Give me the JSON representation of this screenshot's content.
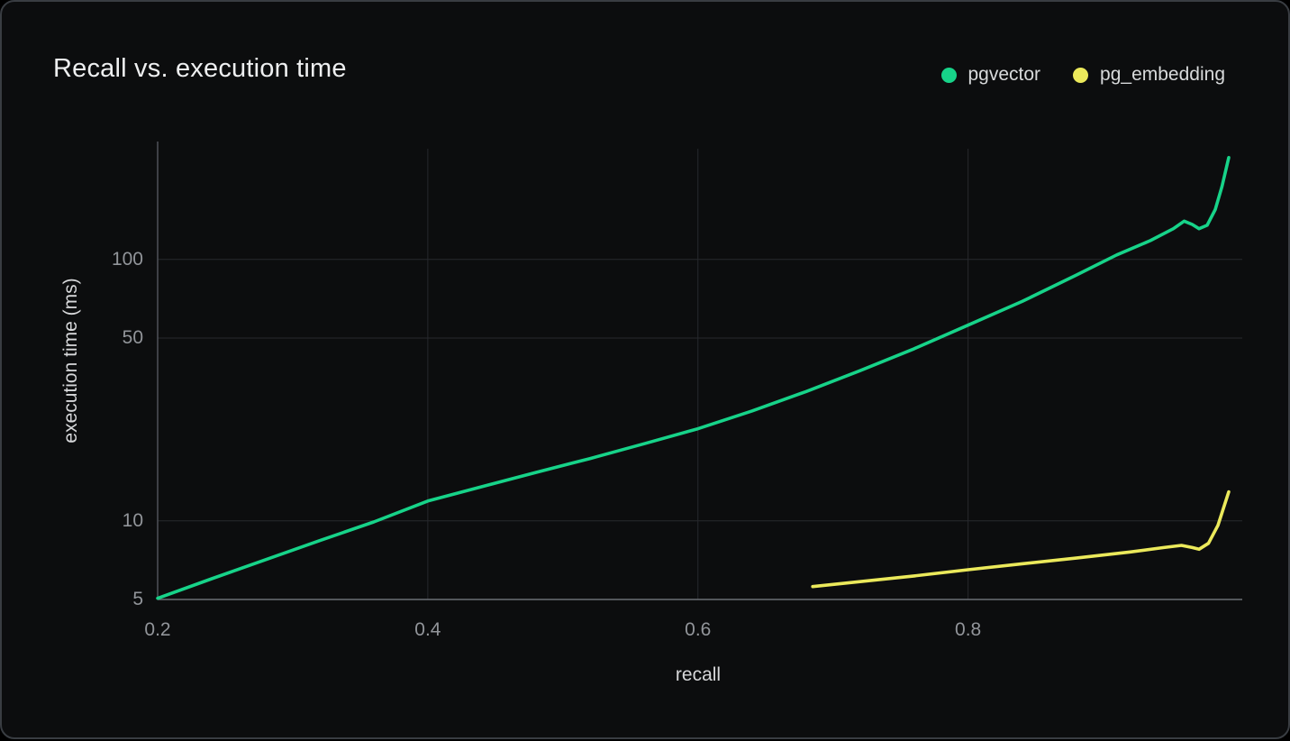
{
  "chart_data": {
    "type": "line",
    "title": "Recall vs. execution time",
    "xlabel": "recall",
    "ylabel": "execution time (ms)",
    "grid": true,
    "legend_position": "top-right",
    "x_axis": {
      "scale": "linear",
      "range": [
        0.2,
        1.003
      ],
      "tick_labels": [
        "0.2",
        "0.4",
        "0.6",
        "0.8"
      ],
      "tick_values": [
        0.2,
        0.4,
        0.6,
        0.8
      ]
    },
    "y_axis": {
      "scale": "log",
      "range": [
        5,
        280
      ],
      "tick_labels": [
        "5",
        "10",
        "50",
        "100"
      ],
      "tick_values": [
        5,
        10,
        50,
        100
      ]
    },
    "series": [
      {
        "name": "pgvector",
        "color": "#17d389",
        "points": [
          [
            0.2,
            5.05
          ],
          [
            0.24,
            6.0
          ],
          [
            0.28,
            7.1
          ],
          [
            0.32,
            8.4
          ],
          [
            0.36,
            9.9
          ],
          [
            0.4,
            11.9
          ],
          [
            0.44,
            13.5
          ],
          [
            0.48,
            15.3
          ],
          [
            0.52,
            17.3
          ],
          [
            0.56,
            19.7
          ],
          [
            0.6,
            22.5
          ],
          [
            0.64,
            26.3
          ],
          [
            0.68,
            31.2
          ],
          [
            0.72,
            37.5
          ],
          [
            0.76,
            45.5
          ],
          [
            0.8,
            56
          ],
          [
            0.84,
            69
          ],
          [
            0.88,
            87
          ],
          [
            0.91,
            104
          ],
          [
            0.935,
            118
          ],
          [
            0.952,
            131
          ],
          [
            0.96,
            140
          ],
          [
            0.966,
            136
          ],
          [
            0.971,
            131
          ],
          [
            0.977,
            135
          ],
          [
            0.983,
            155
          ],
          [
            0.988,
            190
          ],
          [
            0.993,
            245
          ]
        ]
      },
      {
        "name": "pg_embedding",
        "color": "#ebe95b",
        "points": [
          [
            0.685,
            5.6
          ],
          [
            0.72,
            5.85
          ],
          [
            0.76,
            6.15
          ],
          [
            0.8,
            6.5
          ],
          [
            0.84,
            6.85
          ],
          [
            0.88,
            7.2
          ],
          [
            0.92,
            7.6
          ],
          [
            0.945,
            7.9
          ],
          [
            0.958,
            8.05
          ],
          [
            0.966,
            7.9
          ],
          [
            0.971,
            7.78
          ],
          [
            0.978,
            8.2
          ],
          [
            0.985,
            9.6
          ],
          [
            0.993,
            12.9
          ]
        ]
      }
    ]
  }
}
